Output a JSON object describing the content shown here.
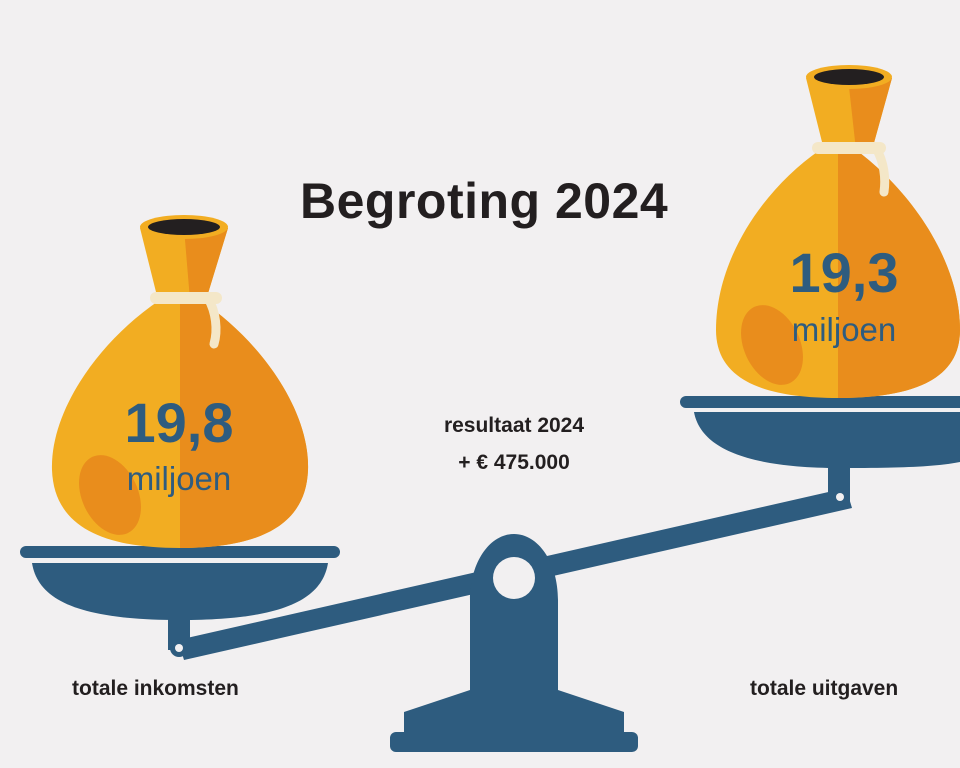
{
  "title": "Begroting 2024",
  "income": {
    "amount": "19,8",
    "unit": "miljoen",
    "caption": "totale inkomsten"
  },
  "expenses": {
    "amount": "19,3",
    "unit": "miljoen",
    "caption": "totale uitgaven"
  },
  "result": {
    "label": "resultaat 2024",
    "value": "+ € 475.000"
  },
  "colors": {
    "background": "#f2f0f1",
    "scale_blue": "#2e5c7f",
    "bag_gold": "#f2ad22",
    "bag_orange": "#e98d1c",
    "text_dark": "#231f20"
  }
}
